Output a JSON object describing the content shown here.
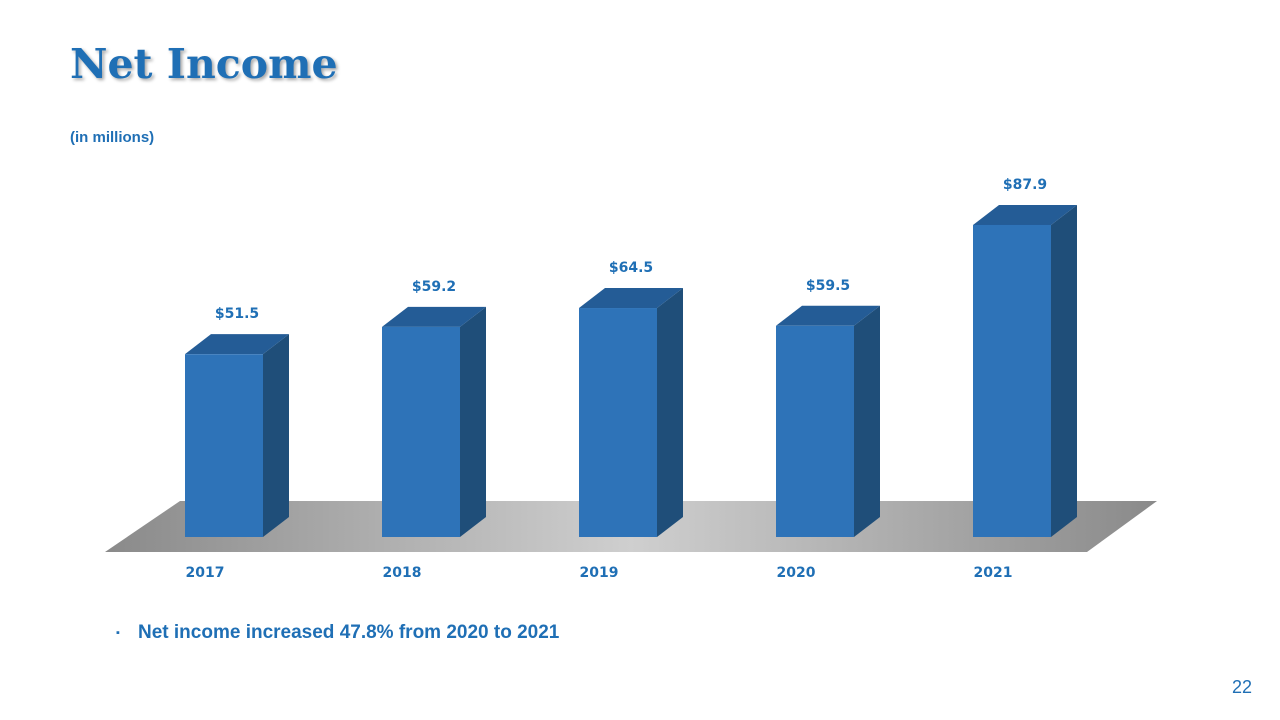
{
  "slide": {
    "title": "Net Income",
    "subtitle": "(in millions)",
    "bullet": "Net income increased 47.8% from 2020 to 2021",
    "bullet_marker": "▪",
    "page_number": "22"
  },
  "chart_data": {
    "type": "bar",
    "categories": [
      "2017",
      "2018",
      "2019",
      "2020",
      "2021"
    ],
    "values": [
      51.5,
      59.2,
      64.5,
      59.5,
      87.9
    ],
    "labels": [
      "$51.5",
      "$59.2",
      "$64.5",
      "$59.5",
      "$87.9"
    ],
    "title": "",
    "xlabel": "",
    "ylabel": "",
    "grid": false,
    "legend": "none",
    "colors": {
      "bar_front": "#2e73b8",
      "bar_side": "#1f4e79",
      "bar_top": "#245c96",
      "label": "#1f6fb5"
    }
  }
}
